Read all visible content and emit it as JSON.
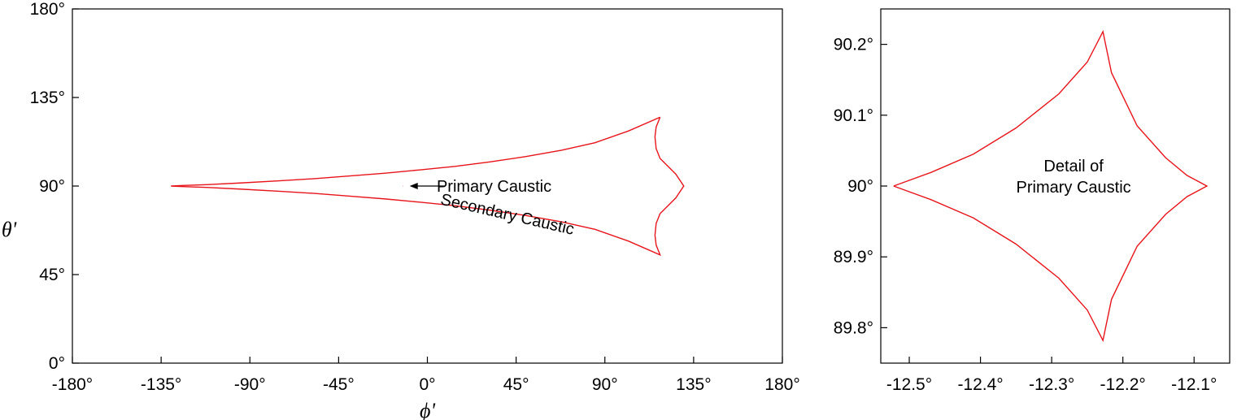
{
  "chart_data": [
    {
      "type": "line",
      "xlabel": "ϕ'",
      "ylabel": "θ'",
      "xlim": [
        -180,
        180
      ],
      "ylim": [
        0,
        180
      ],
      "x_ticks": [
        -180,
        -135,
        -90,
        -45,
        0,
        45,
        90,
        135,
        180
      ],
      "x_tick_labels": [
        "-180°",
        "-135°",
        "-90°",
        "-45°",
        "0°",
        "45°",
        "90°",
        "135°",
        "180°"
      ],
      "y_ticks": [
        0,
        45,
        90,
        135,
        180
      ],
      "y_tick_labels": [
        "0°",
        "45°",
        "90°",
        "135°",
        "180°"
      ],
      "grid": false,
      "series": [
        {
          "name": "Secondary Caustic",
          "x": [
            118.0,
            102.0,
            85.0,
            68.0,
            50.0,
            32.0,
            14.0,
            -4.0,
            -22.0,
            -40.0,
            -58.0,
            -76.0,
            -94.0,
            -112.0,
            -124.0,
            -130.0,
            -124.0,
            -112.0,
            -94.0,
            -76.0,
            -58.0,
            -40.0,
            -22.0,
            -4.0,
            14.0,
            32.0,
            50.0,
            68.0,
            85.0,
            102.0,
            118.0,
            116.0,
            115.4,
            116.0,
            118.0,
            122.0,
            126.0,
            130.0,
            126.0,
            122.0,
            118.0,
            116.0,
            115.4,
            116.0,
            118.0
          ],
          "y": [
            125.0,
            118.0,
            112.0,
            108.2,
            105.0,
            102.3,
            100.0,
            98.2,
            96.5,
            95.1,
            93.7,
            92.6,
            91.6,
            90.7,
            90.3,
            90.0,
            89.7,
            89.3,
            88.4,
            87.4,
            86.3,
            84.9,
            83.5,
            81.8,
            80.0,
            77.7,
            75.0,
            71.8,
            68.0,
            62.0,
            55.0,
            60.0,
            65.0,
            71.0,
            76.0,
            80.0,
            84.0,
            90.0,
            96.0,
            100.0,
            104.0,
            109.0,
            115.0,
            120.0,
            125.0
          ]
        },
        {
          "name": "Primary Caustic",
          "x": [
            -12.3,
            -12.2
          ],
          "y": [
            90.0,
            90.0
          ]
        }
      ],
      "annotations": [
        {
          "text": "Primary Caustic",
          "x": -6,
          "y": 90
        },
        {
          "text": "Secondary Caustic",
          "x": 40,
          "y": 73
        }
      ]
    },
    {
      "type": "line",
      "xlabel": "",
      "ylabel": "",
      "xlim": [
        -12.54,
        -12.05
      ],
      "ylim": [
        89.75,
        90.25
      ],
      "x_ticks": [
        -12.5,
        -12.4,
        -12.3,
        -12.2,
        -12.1
      ],
      "x_tick_labels": [
        "-12.5°",
        "-12.4°",
        "-12.3°",
        "-12.2°",
        "-12.1°"
      ],
      "y_ticks": [
        89.8,
        89.9,
        90.0,
        90.1,
        90.2
      ],
      "y_tick_labels": [
        "89.8°",
        "89.9°",
        "90°",
        "90.1°",
        "90.2°"
      ],
      "grid": false,
      "series": [
        {
          "name": "Detail of Primary Caustic",
          "x": [
            -12.522,
            -12.47,
            -12.41,
            -12.35,
            -12.29,
            -12.25,
            -12.228,
            -12.216,
            -12.18,
            -12.14,
            -12.11,
            -12.082,
            -12.11,
            -12.14,
            -12.18,
            -12.216,
            -12.228,
            -12.25,
            -12.29,
            -12.35,
            -12.41,
            -12.47,
            -12.522
          ],
          "y": [
            90.0,
            90.019,
            90.045,
            90.082,
            90.13,
            90.175,
            90.218,
            90.16,
            90.085,
            90.04,
            90.015,
            90.0,
            89.985,
            89.96,
            89.915,
            89.84,
            89.782,
            89.825,
            89.87,
            89.918,
            89.955,
            89.981,
            90.0
          ]
        }
      ],
      "annotations": [
        {
          "text": "Detail of",
          "x": -12.3,
          "y": 90.015
        },
        {
          "text": "Primary Caustic",
          "x": -12.3,
          "y": 89.985
        }
      ]
    }
  ],
  "colors": {
    "curve": "#e8141b",
    "axis": "#000000"
  }
}
